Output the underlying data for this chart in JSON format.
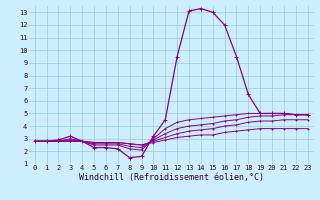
{
  "title": "",
  "xlabel": "Windchill (Refroidissement éolien,°C)",
  "ylabel": "",
  "xlim": [
    -0.5,
    23.5
  ],
  "ylim": [
    1,
    13.5
  ],
  "xticks": [
    0,
    1,
    2,
    3,
    4,
    5,
    6,
    7,
    8,
    9,
    10,
    11,
    12,
    13,
    14,
    15,
    16,
    17,
    18,
    19,
    20,
    21,
    22,
    23
  ],
  "yticks": [
    1,
    2,
    3,
    4,
    5,
    6,
    7,
    8,
    9,
    10,
    11,
    12,
    13
  ],
  "background_color": "#cceeff",
  "grid_color": "#99cccc",
  "line_color": "#880088",
  "curves": [
    {
      "x": [
        0,
        1,
        2,
        3,
        4,
        5,
        6,
        7,
        8,
        9,
        10,
        11,
        12,
        13,
        14,
        15,
        16,
        17,
        18,
        19,
        20,
        21,
        22,
        23
      ],
      "y": [
        2.8,
        2.8,
        2.9,
        3.2,
        2.8,
        2.3,
        2.3,
        2.2,
        1.5,
        1.6,
        3.2,
        4.5,
        9.5,
        13.1,
        13.3,
        13.0,
        12.0,
        9.5,
        6.5,
        5.0,
        5.0,
        5.0,
        4.9,
        4.9
      ]
    },
    {
      "x": [
        0,
        1,
        2,
        3,
        4,
        5,
        6,
        7,
        8,
        9,
        10,
        11,
        12,
        13,
        14,
        15,
        16,
        17,
        18,
        19,
        20,
        21,
        22,
        23
      ],
      "y": [
        2.8,
        2.8,
        2.8,
        3.0,
        2.8,
        2.5,
        2.5,
        2.5,
        2.2,
        2.1,
        3.0,
        3.8,
        4.3,
        4.5,
        4.6,
        4.7,
        4.8,
        4.9,
        5.0,
        5.0,
        5.0,
        5.0,
        4.9,
        4.9
      ]
    },
    {
      "x": [
        0,
        1,
        2,
        3,
        4,
        5,
        6,
        7,
        8,
        9,
        10,
        11,
        12,
        13,
        14,
        15,
        16,
        17,
        18,
        19,
        20,
        21,
        22,
        23
      ],
      "y": [
        2.8,
        2.8,
        2.8,
        2.9,
        2.8,
        2.6,
        2.6,
        2.6,
        2.4,
        2.3,
        2.9,
        3.4,
        3.8,
        4.0,
        4.1,
        4.2,
        4.4,
        4.5,
        4.7,
        4.8,
        4.8,
        4.9,
        4.9,
        4.9
      ]
    },
    {
      "x": [
        0,
        1,
        2,
        3,
        4,
        5,
        6,
        7,
        8,
        9,
        10,
        11,
        12,
        13,
        14,
        15,
        16,
        17,
        18,
        19,
        20,
        21,
        22,
        23
      ],
      "y": [
        2.8,
        2.8,
        2.8,
        2.8,
        2.8,
        2.7,
        2.7,
        2.7,
        2.6,
        2.5,
        2.8,
        3.1,
        3.4,
        3.6,
        3.7,
        3.8,
        4.0,
        4.1,
        4.3,
        4.4,
        4.4,
        4.5,
        4.5,
        4.5
      ]
    },
    {
      "x": [
        0,
        1,
        2,
        3,
        4,
        5,
        6,
        7,
        8,
        9,
        10,
        11,
        12,
        13,
        14,
        15,
        16,
        17,
        18,
        19,
        20,
        21,
        22,
        23
      ],
      "y": [
        2.8,
        2.8,
        2.8,
        2.8,
        2.8,
        2.7,
        2.7,
        2.7,
        2.6,
        2.5,
        2.7,
        2.9,
        3.1,
        3.2,
        3.3,
        3.3,
        3.5,
        3.6,
        3.7,
        3.8,
        3.8,
        3.8,
        3.8,
        3.8
      ]
    }
  ],
  "tick_fontsize": 5.0,
  "xlabel_fontsize": 6.0,
  "marker": "+"
}
